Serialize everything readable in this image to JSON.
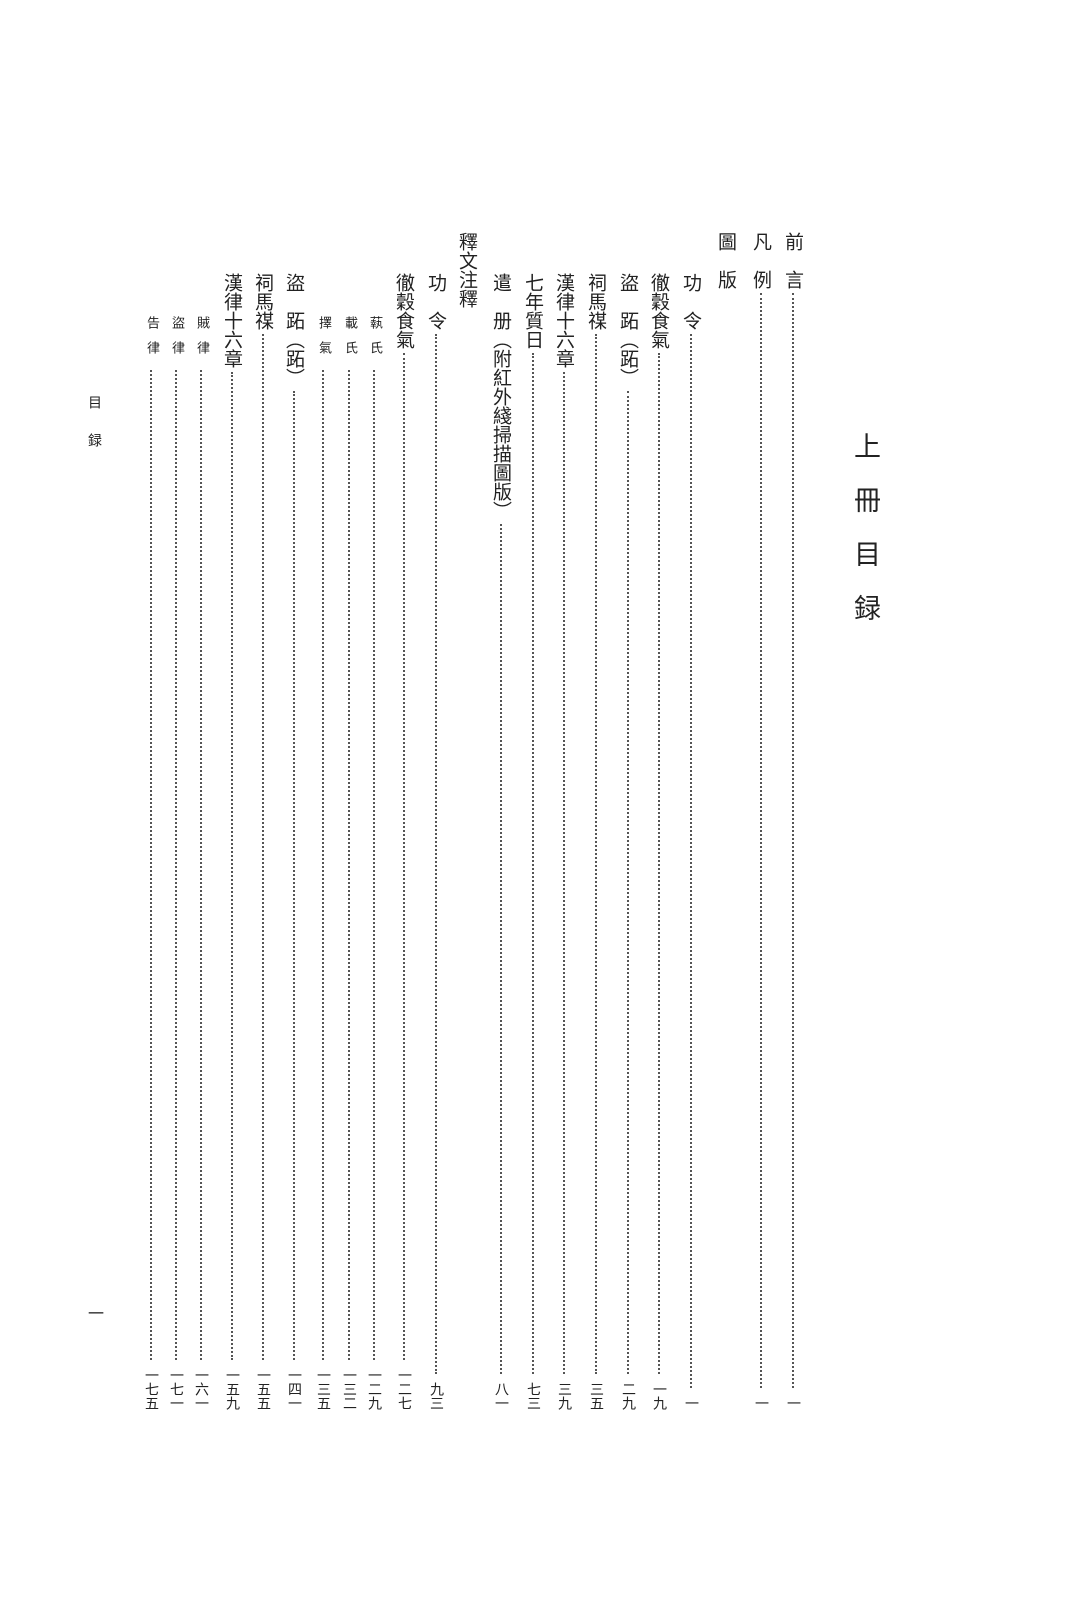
{
  "title": "上冊目録",
  "running_head": "目録",
  "folio": "一",
  "entries": [
    {
      "label": "前　言",
      "page": "一",
      "level": 0
    },
    {
      "label": "凡　例",
      "page": "一",
      "level": 0
    },
    {
      "label": "圖　版",
      "page": "",
      "level": 0
    },
    {
      "label": "功　令",
      "page": "一",
      "level": 1
    },
    {
      "label": "徹穀食氣",
      "page": "一九",
      "level": 1
    },
    {
      "label": "盜　跖（跖）",
      "page": "二九",
      "level": 1
    },
    {
      "label": "祠馬禖",
      "page": "三五",
      "level": 1
    },
    {
      "label": "漢律十六章",
      "page": "三九",
      "level": 1
    },
    {
      "label": "七年質日",
      "page": "七三",
      "level": 1
    },
    {
      "label": "遣　册（附紅外綫掃描圖版）",
      "page": "八一",
      "level": 1
    },
    {
      "label": "釋文注釋",
      "page": "",
      "level": 0
    },
    {
      "label": "功　令",
      "page": "九三",
      "level": 1
    },
    {
      "label": "徹穀食氣",
      "page": "一二七",
      "level": 1
    },
    {
      "label": "蓻氏",
      "page": "一二九",
      "level": 2
    },
    {
      "label": "載氏",
      "page": "一三二",
      "level": 2
    },
    {
      "label": "擇氣",
      "page": "一三五",
      "level": 2
    },
    {
      "label": "盜　跖（跖）",
      "page": "一四一",
      "level": 1
    },
    {
      "label": "祠馬禖",
      "page": "一五五",
      "level": 1
    },
    {
      "label": "漢律十六章",
      "page": "一五九",
      "level": 1
    },
    {
      "label": "賊律",
      "page": "一六一",
      "level": 2
    },
    {
      "label": "盜律",
      "page": "一七一",
      "level": 2
    },
    {
      "label": "告律",
      "page": "一七五",
      "level": 2
    }
  ]
}
